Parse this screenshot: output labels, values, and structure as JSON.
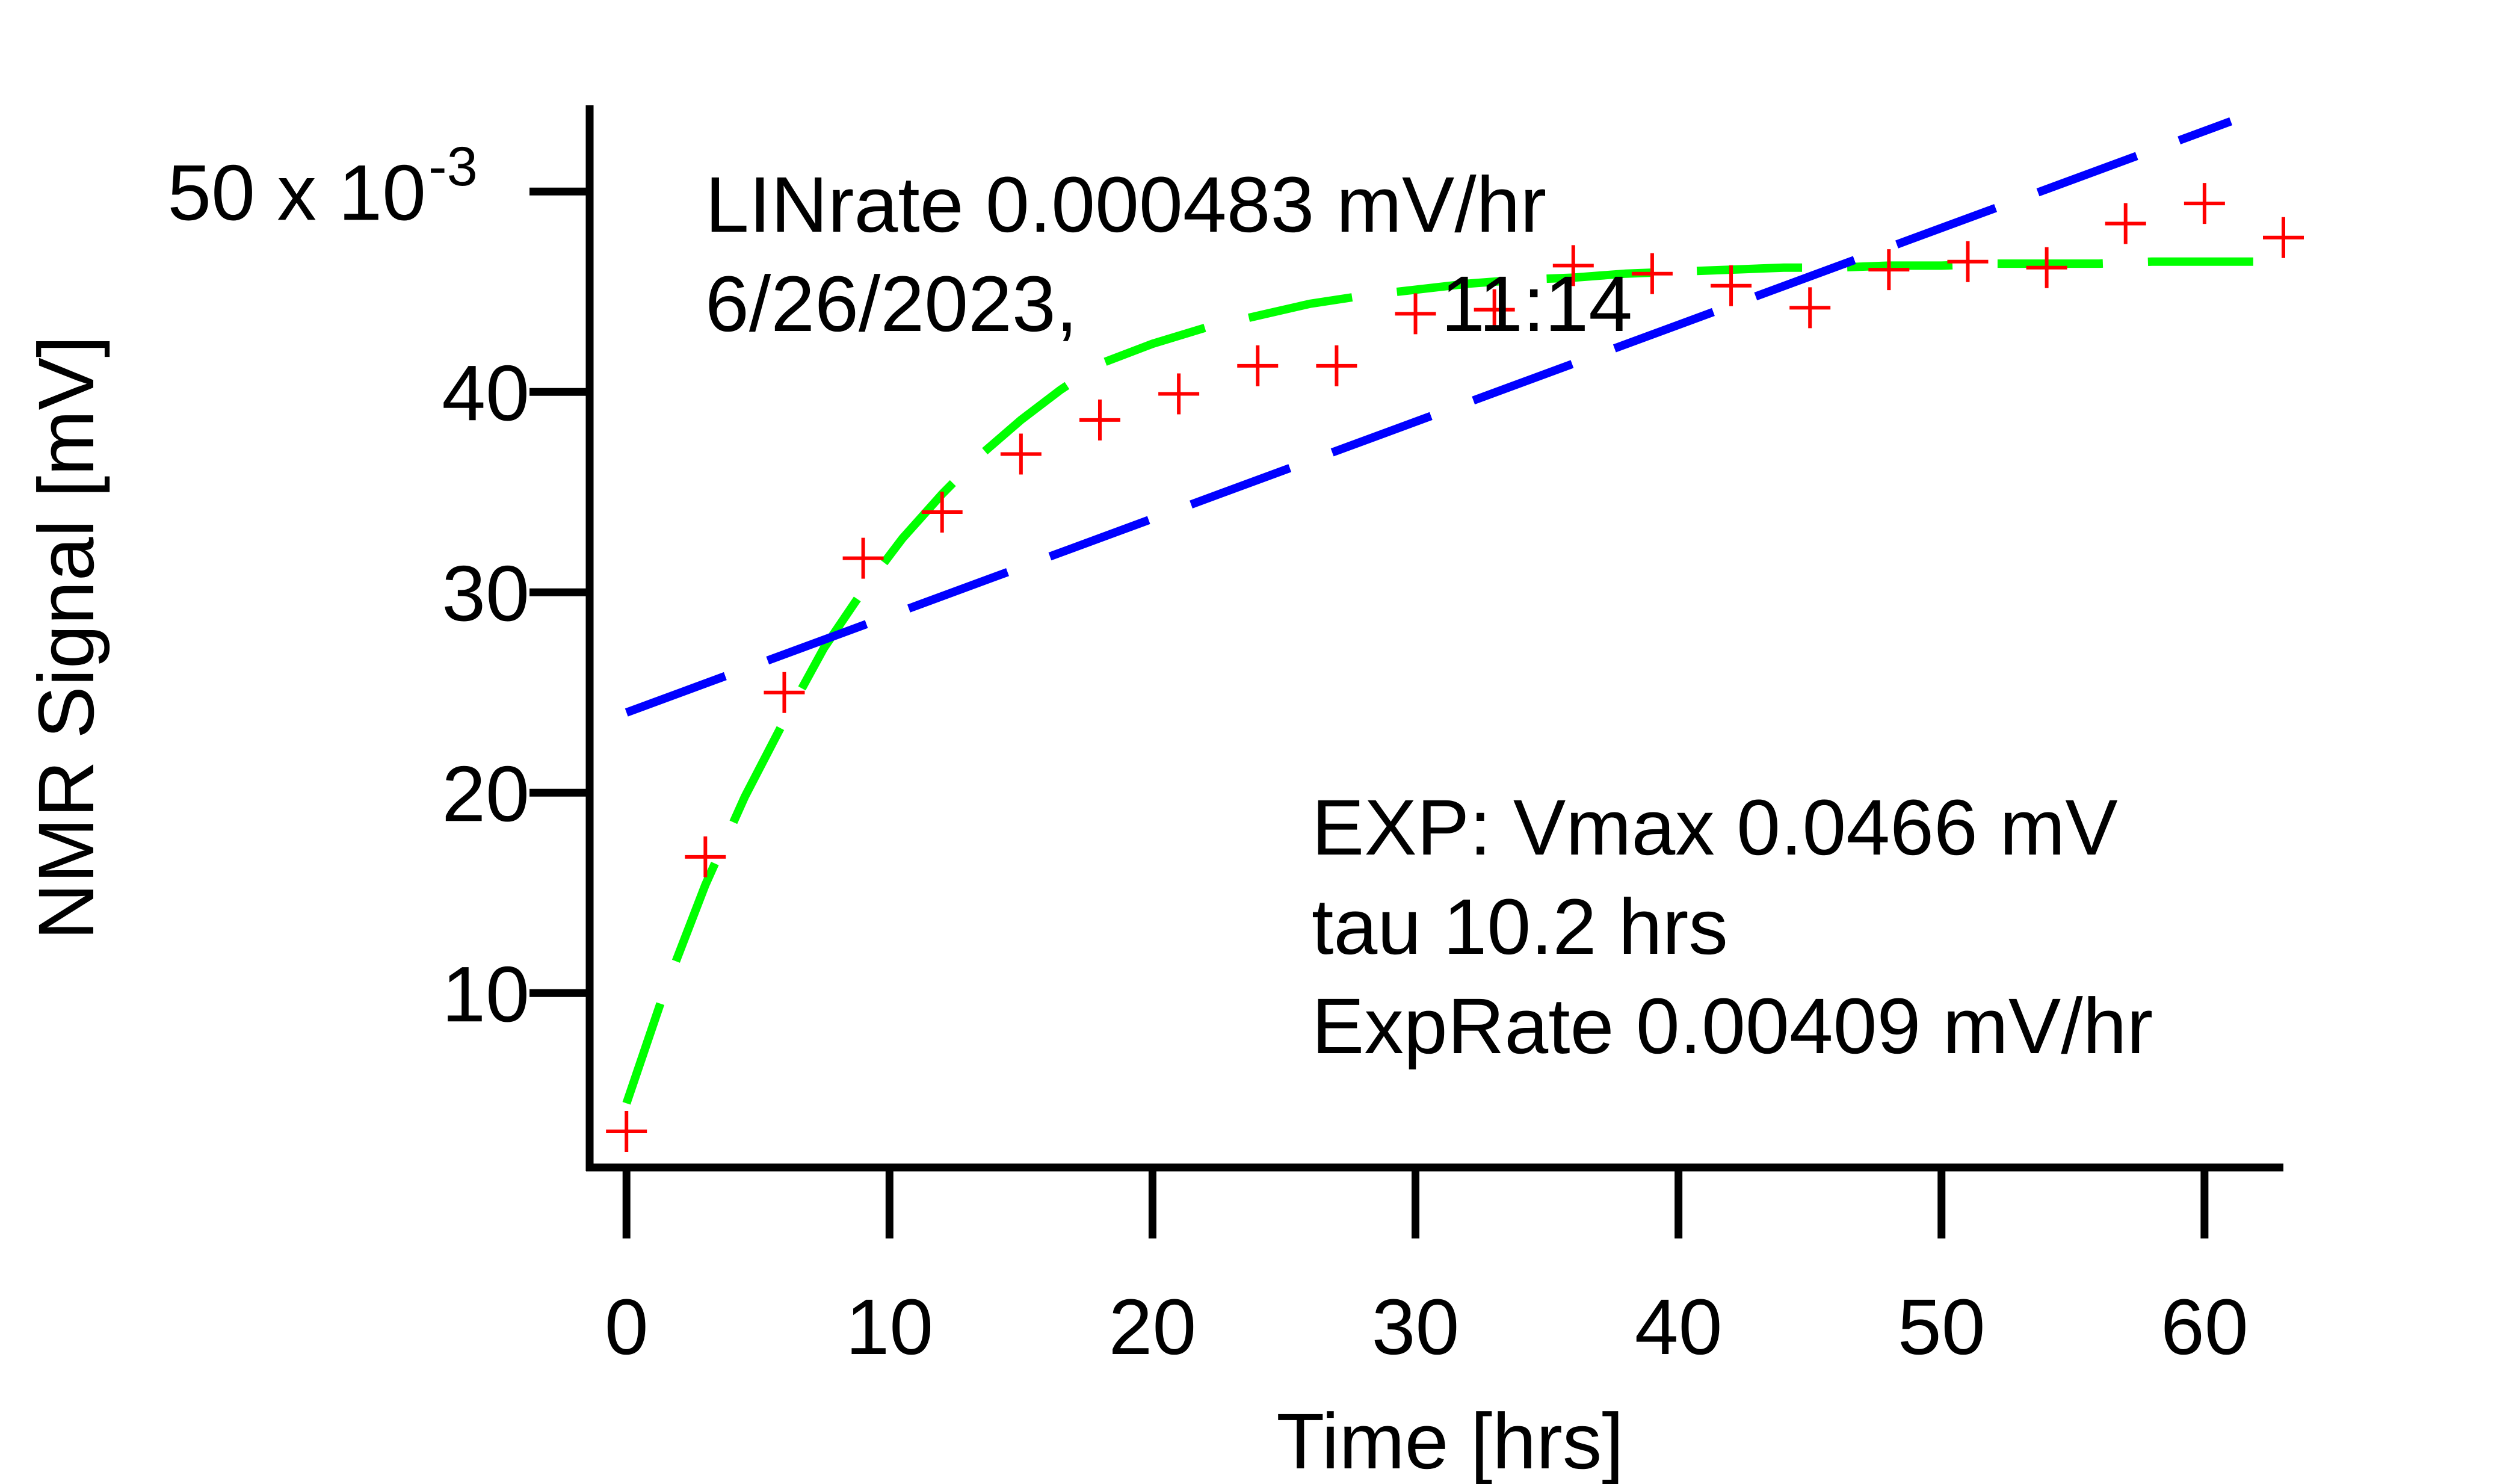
{
  "chart_data": {
    "type": "scatter",
    "title": "",
    "xlabel": "Time [hrs]",
    "ylabel": "NMR Signal [mV]",
    "xlim": [
      -1.4,
      63
    ],
    "ylim": [
      0.0013,
      0.0543
    ],
    "x_ticks": [
      0,
      10,
      20,
      30,
      40,
      50,
      60
    ],
    "x_tick_labels": [
      "0",
      "10",
      "20",
      "30",
      "40",
      "50",
      "60"
    ],
    "y_ticks": [
      0.01,
      0.02,
      0.03,
      0.04,
      0.05
    ],
    "y_tick_labels": [
      "10",
      "20",
      "30",
      "40",
      "50 x 10"
    ],
    "y_tick_exponent": "-3",
    "grid": false,
    "legend": "none",
    "series": [
      {
        "kind": "data",
        "marker": "+",
        "color": "#ff0000",
        "x": [
          0,
          3,
          6,
          9,
          12,
          15,
          18,
          21,
          24,
          27,
          30,
          33,
          36,
          39,
          42,
          45,
          48,
          51,
          54,
          57,
          60,
          63
        ],
        "y": [
          0.0031,
          0.0168,
          0.025,
          0.0317,
          0.034,
          0.0369,
          0.0386,
          0.0399,
          0.0413,
          0.0413,
          0.0439,
          0.0441,
          0.0463,
          0.0459,
          0.0453,
          0.0442,
          0.0461,
          0.0465,
          0.0462,
          0.0484,
          0.0494,
          0.0477
        ]
      },
      {
        "kind": "exp-fit",
        "line_style": "dashed",
        "color": "#00ff00",
        "x": [
          0,
          1.5,
          3,
          4.5,
          6,
          7.5,
          9,
          10.5,
          12,
          13.5,
          15,
          16.5,
          18,
          20,
          22,
          24,
          26,
          28,
          30,
          32,
          34,
          36,
          38,
          40,
          42,
          44,
          46,
          48,
          50,
          52,
          54,
          56,
          58,
          60,
          62,
          63
        ],
        "y": [
          0.0045,
          0.0103,
          0.0154,
          0.0198,
          0.0236,
          0.0272,
          0.0301,
          0.0327,
          0.0349,
          0.0369,
          0.0386,
          0.0401,
          0.0414,
          0.0424,
          0.0432,
          0.0438,
          0.0444,
          0.0448,
          0.0451,
          0.0454,
          0.0456,
          0.0457,
          0.0459,
          0.046,
          0.0461,
          0.0462,
          0.0462,
          0.0463,
          0.0463,
          0.0464,
          0.0464,
          0.0464,
          0.0465,
          0.0465,
          0.0465,
          0.0465
        ]
      },
      {
        "kind": "linear-fit",
        "line_style": "dashed",
        "color": "#0000ff",
        "x": [
          0,
          61
        ],
        "y": [
          0.024,
          0.0535
        ]
      }
    ],
    "annotations": {
      "lin_rate": "LINrate 0.000483 mV/hr",
      "timestamp_date": "6/26/2023,",
      "timestamp_time": "11:14",
      "exp_vmax": "EXP: Vmax 0.0466 mV",
      "exp_tau": "tau 10.2 hrs",
      "exp_rate": "ExpRate 0.00409 mV/hr"
    }
  }
}
